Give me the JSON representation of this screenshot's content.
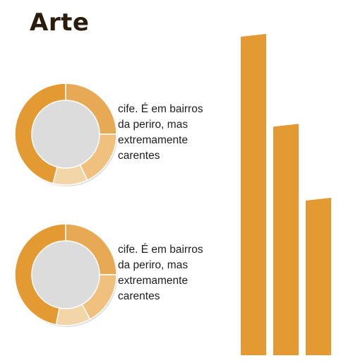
{
  "title": "Arte",
  "colors": {
    "bar": "#e39a33",
    "donut_segments": [
      "#e8a955",
      "#f0c07f",
      "#f3d6a8",
      "#e39a33"
    ],
    "donut_shadow": "#dcdcdc"
  },
  "chart_data": [
    {
      "type": "pie",
      "variant": "donut",
      "values": [
        25,
        18,
        11,
        46
      ],
      "caption_lines": [
        "cife. É em bairros",
        "da periro, mas",
        "extremamente",
        "carentes"
      ]
    },
    {
      "type": "pie",
      "variant": "donut",
      "values": [
        25,
        17,
        11,
        47
      ],
      "caption_lines": [
        "cife. É em bairros",
        "da periro, mas",
        "extremamente",
        "carentes"
      ]
    },
    {
      "type": "bar",
      "values": [
        100,
        72,
        49
      ],
      "ylim": [
        0,
        100
      ]
    }
  ]
}
